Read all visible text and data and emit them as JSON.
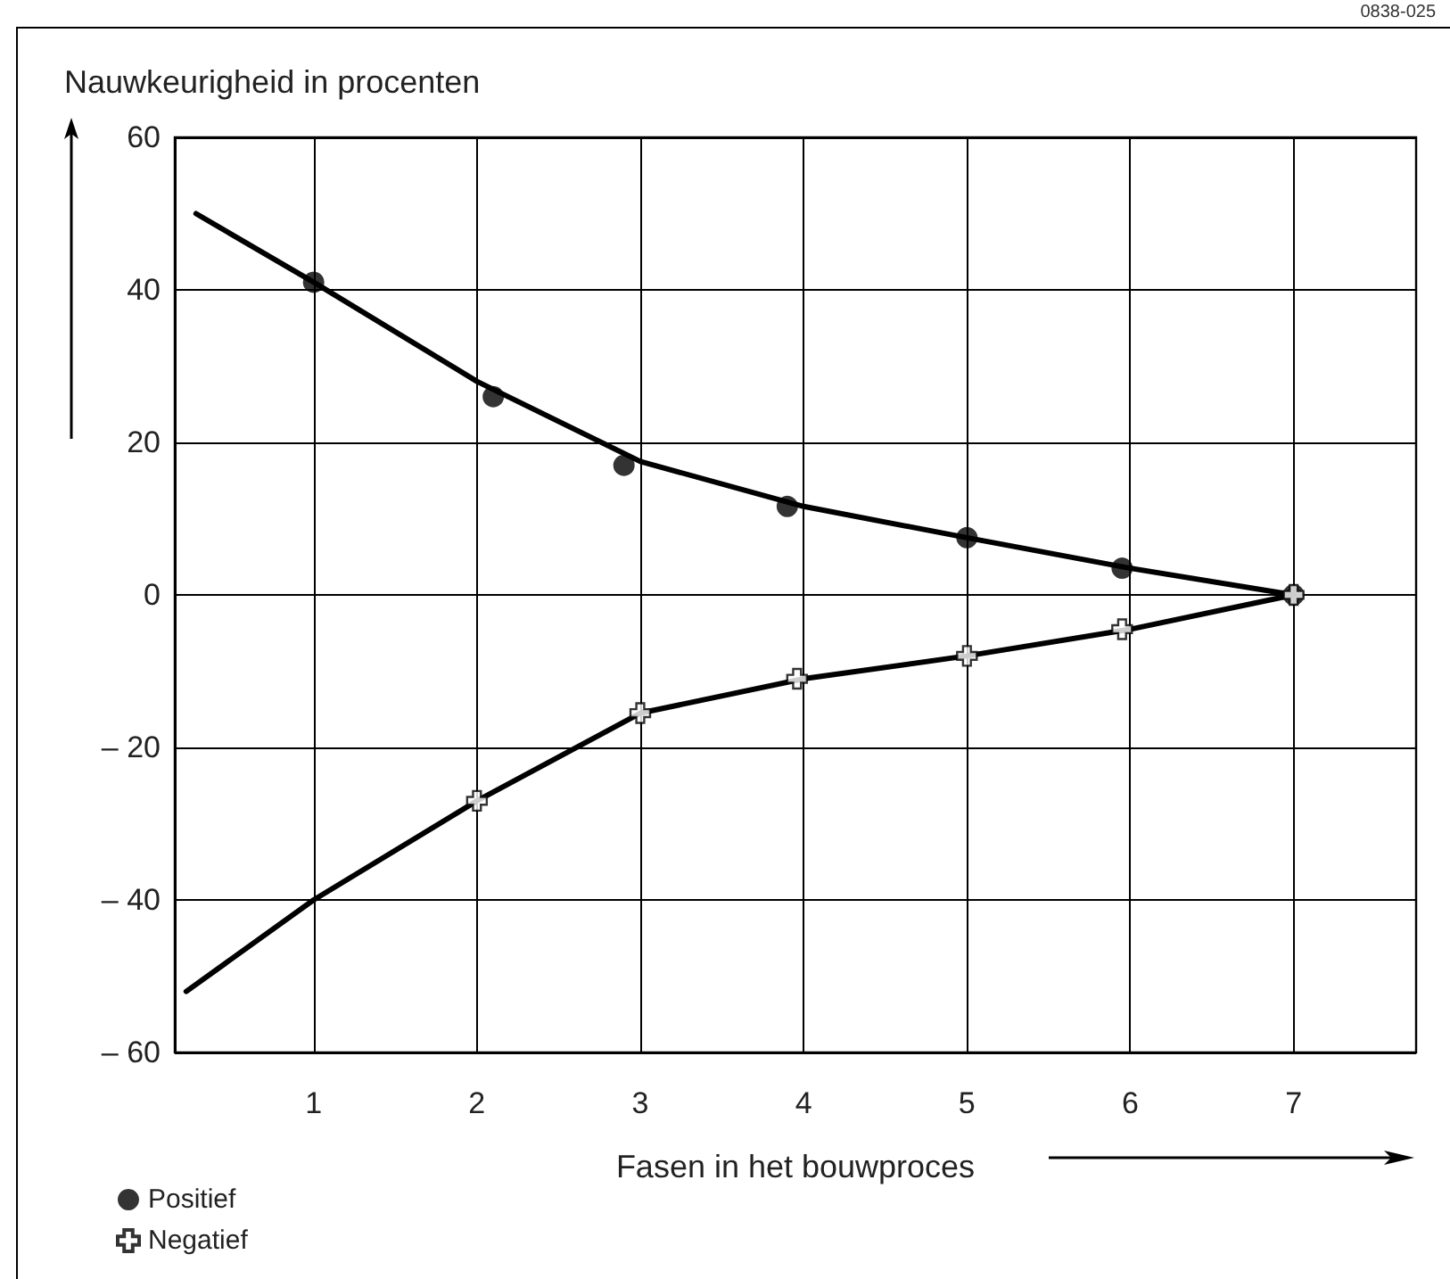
{
  "chart_data": {
    "type": "scatter",
    "ylabel": "Nauwkeurigheid in procenten",
    "xlabel": "Fasen in het bouwproces",
    "annotations": [
      "0838-025"
    ],
    "xlim": [
      0.15,
      7.75
    ],
    "xticks": [
      1,
      2,
      3,
      4,
      5,
      6,
      7
    ],
    "ylim": [
      -60,
      60
    ],
    "yticks": [
      60,
      40,
      20,
      0,
      {
        "value": -20,
        "label": "– 20"
      },
      {
        "value": -40,
        "label": "– 40"
      },
      {
        "value": -60,
        "label": "– 60"
      }
    ],
    "grid": true,
    "legend": "bottom left",
    "series": [
      {
        "type": "line",
        "color": "#000000",
        "x": [
          0.28,
          1,
          2,
          3,
          4,
          5,
          6,
          7
        ],
        "values": [
          50,
          41,
          28,
          17.5,
          11.6,
          7.5,
          3.5,
          0
        ],
        "marker": "none",
        "line_style": "solid"
      },
      {
        "type": "line",
        "color": "#000000",
        "x": [
          0.22,
          1,
          2,
          3,
          4,
          5,
          6,
          7
        ],
        "values": [
          -52,
          -40,
          -27,
          -15.5,
          -11,
          -8,
          -4.5,
          0
        ],
        "marker": "none",
        "line_style": "solid"
      },
      {
        "name": "Positief",
        "color": "#000000",
        "x": [
          1,
          2.1,
          2.9,
          3.9,
          5,
          5.95,
          7
        ],
        "values": [
          41,
          26,
          17,
          11.6,
          7.5,
          3.5,
          0
        ],
        "marker": "circle"
      },
      {
        "name": "Negatief",
        "color": "#000000",
        "x": [
          2,
          3,
          3.96,
          5,
          5.95,
          7
        ],
        "values": [
          -27,
          -15.5,
          -11,
          -8,
          -4.5,
          0
        ],
        "marker": "cross"
      }
    ]
  }
}
